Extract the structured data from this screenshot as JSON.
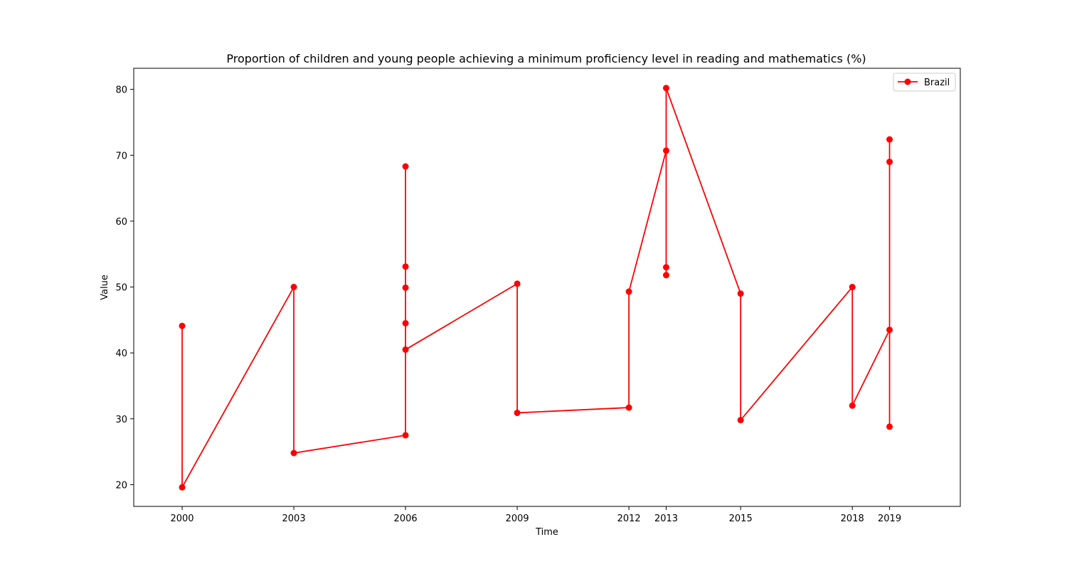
{
  "chart_data": {
    "type": "line",
    "title": "Proportion of children and young people achieving a minimum proficiency level in reading and mathematics (%)",
    "xlabel": "Time",
    "ylabel": "Value",
    "xlim": [
      1998.7,
      2020.9
    ],
    "ylim": [
      16.7,
      83.2
    ],
    "x_ticks": [
      2000,
      2003,
      2006,
      2009,
      2012,
      2013,
      2015,
      2018,
      2019
    ],
    "y_ticks": [
      20,
      30,
      40,
      50,
      60,
      70,
      80
    ],
    "grid": false,
    "legend_position": "top-right",
    "series": [
      {
        "name": "Brazil",
        "color": "#ff0000",
        "marker": "circle",
        "points": [
          [
            2000,
            44.1
          ],
          [
            2000,
            19.6
          ],
          [
            2003,
            50.0
          ],
          [
            2003,
            24.8
          ],
          [
            2006,
            27.5
          ],
          [
            2006,
            68.3
          ],
          [
            2006,
            53.1
          ],
          [
            2006,
            49.9
          ],
          [
            2006,
            44.5
          ],
          [
            2006,
            40.5
          ],
          [
            2009,
            50.5
          ],
          [
            2009,
            30.9
          ],
          [
            2012,
            31.7
          ],
          [
            2012,
            49.3
          ],
          [
            2013,
            70.7
          ],
          [
            2013,
            51.8
          ],
          [
            2013,
            53.0
          ],
          [
            2013,
            80.2
          ],
          [
            2015,
            49.0
          ],
          [
            2015,
            29.8
          ],
          [
            2018,
            50.0
          ],
          [
            2018,
            32.0
          ],
          [
            2019,
            43.5
          ],
          [
            2019,
            28.8
          ],
          [
            2019,
            72.4
          ],
          [
            2019,
            69.0
          ]
        ]
      }
    ]
  }
}
